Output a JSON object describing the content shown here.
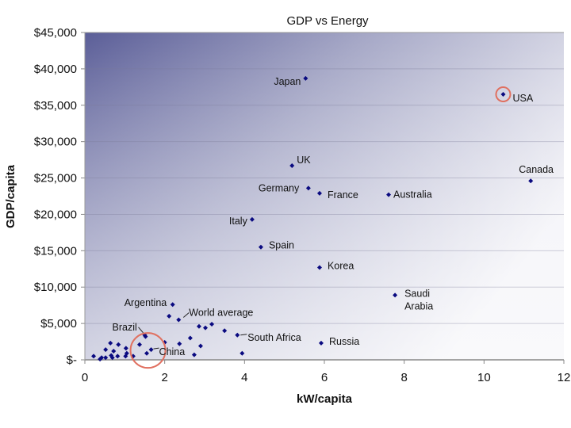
{
  "chart_data": {
    "type": "scatter",
    "title": "GDP vs Energy",
    "xlabel": "kW/capita",
    "ylabel": "GDP/capita",
    "xlim": [
      0,
      12
    ],
    "ylim": [
      0,
      45000
    ],
    "x_ticks": [
      "0",
      "2",
      "4",
      "6",
      "8",
      "10",
      "12"
    ],
    "y_ticks": [
      "$-",
      "$5,000",
      "$10,000",
      "$15,000",
      "$20,000",
      "$25,000",
      "$30,000",
      "$35,000",
      "$40,000",
      "$45,000"
    ],
    "grid": true,
    "marker_color": "#0a0a80",
    "highlight_color": "#e07060",
    "labeled_points": [
      {
        "name": "Japan",
        "x": 5.53,
        "y": 38700
      },
      {
        "name": "USA",
        "x": 10.48,
        "y": 36500,
        "highlighted": true
      },
      {
        "name": "UK",
        "x": 5.19,
        "y": 26700
      },
      {
        "name": "Germany",
        "x": 5.6,
        "y": 23600
      },
      {
        "name": "France",
        "x": 5.88,
        "y": 22900
      },
      {
        "name": "Australia",
        "x": 7.61,
        "y": 22700
      },
      {
        "name": "Canada",
        "x": 11.17,
        "y": 24600
      },
      {
        "name": "Italy",
        "x": 4.19,
        "y": 19300
      },
      {
        "name": "Spain",
        "x": 4.41,
        "y": 15500
      },
      {
        "name": "Korea",
        "x": 5.88,
        "y": 12700
      },
      {
        "name": "Saudi Arabia",
        "x": 7.77,
        "y": 8900
      },
      {
        "name": "Russia",
        "x": 5.92,
        "y": 2300
      },
      {
        "name": "Argentina",
        "x": 2.2,
        "y": 7600
      },
      {
        "name": "World average",
        "x": 2.35,
        "y": 5500
      },
      {
        "name": "South Africa",
        "x": 3.82,
        "y": 3400
      },
      {
        "name": "Brazil",
        "x": 1.5,
        "y": 3400
      },
      {
        "name": "China",
        "x": 1.66,
        "y": 1400,
        "highlighted": true
      }
    ],
    "other_points": [
      [
        2.11,
        6000
      ],
      [
        2.86,
        4600
      ],
      [
        3.02,
        4400
      ],
      [
        3.18,
        4900
      ],
      [
        3.5,
        4000
      ],
      [
        3.94,
        900
      ],
      [
        2.64,
        3000
      ],
      [
        2.9,
        1900
      ],
      [
        2.74,
        700
      ],
      [
        2.37,
        2200
      ],
      [
        2.0,
        2400
      ],
      [
        1.52,
        3200
      ],
      [
        1.37,
        2100
      ],
      [
        1.55,
        900
      ],
      [
        1.21,
        500
      ],
      [
        1.03,
        1600
      ],
      [
        1.05,
        900
      ],
      [
        1.02,
        500
      ],
      [
        0.84,
        2100
      ],
      [
        0.64,
        2300
      ],
      [
        0.52,
        1400
      ],
      [
        0.72,
        1200
      ],
      [
        0.82,
        500
      ],
      [
        0.66,
        600
      ],
      [
        0.69,
        300
      ],
      [
        0.52,
        300
      ],
      [
        0.42,
        300
      ],
      [
        0.38,
        100
      ],
      [
        0.22,
        500
      ]
    ]
  }
}
